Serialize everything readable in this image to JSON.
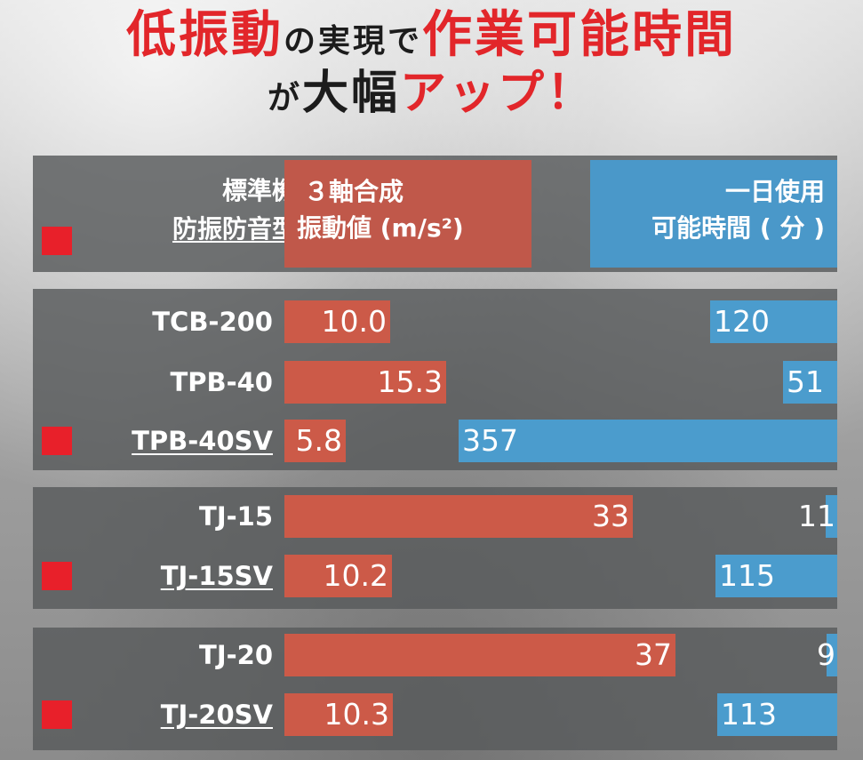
{
  "headline": {
    "line1": [
      {
        "text": "低振動",
        "style": "red"
      },
      {
        "text": "の実現で",
        "style": "blk-small"
      },
      {
        "text": "作業可能時間",
        "style": "red"
      }
    ],
    "line2": [
      {
        "text": "が",
        "style": "blk-small"
      },
      {
        "text": "大幅",
        "style": "blk"
      },
      {
        "text": "アップ！",
        "style": "red"
      }
    ]
  },
  "table_header": {
    "machine_label": "標準機",
    "anti_label": "防振防音型",
    "vib_line1": "３軸合成",
    "vib_line2": "振動値 (m/s²)",
    "time_line1": "一日使用",
    "time_line2": "可能時間 ( 分 )"
  },
  "colors": {
    "marker": "#e8202a",
    "vibration_bar": "#cc5a48",
    "time_bar": "#4b9ccd"
  },
  "chart_data": {
    "type": "bar",
    "title": "低振動の実現で作業可能時間が大幅アップ！",
    "series": [
      {
        "name": "３軸合成振動値 (m/s²)",
        "color": "#cc5a48",
        "labels": [
          "10.0",
          "15.3",
          "5.8",
          "33",
          "10.2",
          "37",
          "10.3"
        ],
        "values": [
          10.0,
          15.3,
          5.8,
          33,
          10.2,
          37,
          10.3
        ]
      },
      {
        "name": "一日使用可能時間 ( 分 )",
        "color": "#4b9ccd",
        "labels": [
          "120",
          "51",
          "357",
          "11",
          "115",
          "9",
          "113"
        ],
        "values": [
          120,
          51,
          357,
          11,
          115,
          9,
          113
        ]
      }
    ],
    "groups": [
      {
        "rows": [
          {
            "model": "TCB-200",
            "marked": false
          },
          {
            "model": "TPB-40",
            "marked": false
          },
          {
            "model": "TPB-40SV",
            "marked": true
          }
        ]
      },
      {
        "rows": [
          {
            "model": "TJ-15",
            "marked": false
          },
          {
            "model": "TJ-15SV",
            "marked": true
          }
        ]
      },
      {
        "rows": [
          {
            "model": "TJ-20",
            "marked": false
          },
          {
            "model": "TJ-20SV",
            "marked": true
          }
        ]
      }
    ],
    "scale": {
      "vibration_max": 37,
      "time_max": 357
    }
  }
}
